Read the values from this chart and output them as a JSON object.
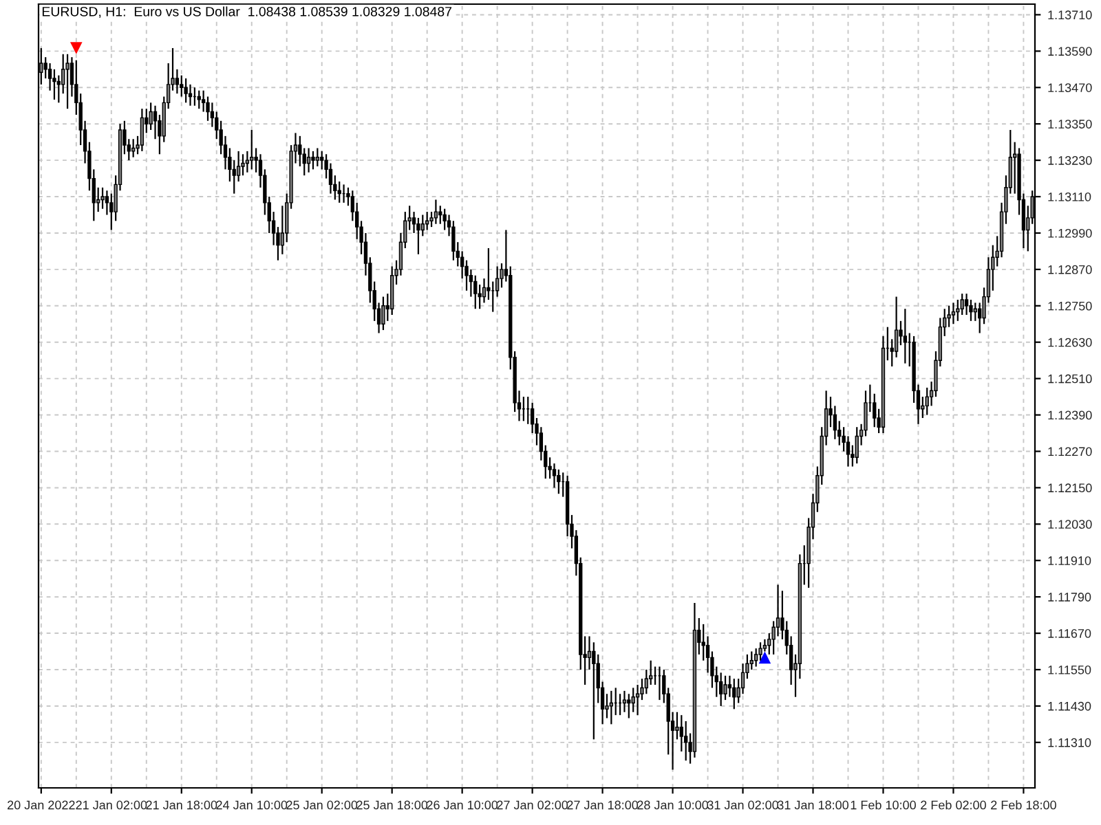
{
  "chart_data": {
    "type": "candlestick",
    "title": "EURUSD, H1:  Euro vs US Dollar  1.08438 1.08539 1.08329 1.08487",
    "categories": [
      "20 Jan 2022",
      null,
      null,
      null,
      null,
      null,
      null,
      null,
      null,
      null,
      null,
      null,
      null,
      null,
      null,
      null,
      "21 Jan 02:00",
      null,
      null,
      null,
      null,
      null,
      null,
      null,
      null,
      null,
      null,
      null,
      null,
      null,
      null,
      null,
      "21 Jan 18:00",
      null,
      null,
      null,
      null,
      null,
      null,
      null,
      null,
      null,
      null,
      null,
      null,
      null,
      null,
      null,
      "24 Jan 10:00",
      null,
      null,
      null,
      null,
      null,
      null,
      null,
      null,
      null,
      null,
      null,
      null,
      null,
      null,
      null,
      "25 Jan 02:00",
      null,
      null,
      null,
      null,
      null,
      null,
      null,
      null,
      null,
      null,
      null,
      null,
      null,
      null,
      null,
      "25 Jan 18:00",
      null,
      null,
      null,
      null,
      null,
      null,
      null,
      null,
      null,
      null,
      null,
      null,
      null,
      null,
      null,
      "26 Jan 10:00",
      null,
      null,
      null,
      null,
      null,
      null,
      null,
      null,
      null,
      null,
      null,
      null,
      null,
      null,
      null,
      "27 Jan 02:00",
      null,
      null,
      null,
      null,
      null,
      null,
      null,
      null,
      null,
      null,
      null,
      null,
      null,
      null,
      null,
      "27 Jan 18:00",
      null,
      null,
      null,
      null,
      null,
      null,
      null,
      null,
      null,
      null,
      null,
      null,
      null,
      null,
      null,
      "28 Jan 10:00",
      null,
      null,
      null,
      null,
      null,
      null,
      null,
      null,
      null,
      null,
      null,
      null,
      null,
      null,
      null,
      "31 Jan 02:00",
      null,
      null,
      null,
      null,
      null,
      null,
      null,
      null,
      null,
      null,
      null,
      null,
      null,
      null,
      null,
      "31 Jan 18:00",
      null,
      null,
      null,
      null,
      null,
      null,
      null,
      null,
      null,
      null,
      null,
      null,
      null,
      null,
      null,
      "1 Feb 10:00",
      null,
      null,
      null,
      null,
      null,
      null,
      null,
      null,
      null,
      null,
      null,
      null,
      null,
      null,
      null,
      "2 Feb 02:00",
      null,
      null,
      null,
      null,
      null,
      null,
      null,
      null,
      null,
      null,
      null,
      null,
      null,
      null,
      null,
      "2 Feb 18:00",
      null,
      null
    ],
    "ohlc": [
      [
        1.1352,
        1.136,
        1.1348,
        1.1355
      ],
      [
        1.1355,
        1.1357,
        1.135,
        1.1353
      ],
      [
        1.1353,
        1.1355,
        1.1346,
        1.135
      ],
      [
        1.135,
        1.1353,
        1.1343,
        1.1349
      ],
      [
        1.1349,
        1.1351,
        1.1342,
        1.1348
      ],
      [
        1.1348,
        1.1358,
        1.1345,
        1.1353
      ],
      [
        1.1353,
        1.1358,
        1.134,
        1.1355
      ],
      [
        1.1355,
        1.1357,
        1.1344,
        1.1348
      ],
      [
        1.1348,
        1.1356,
        1.1338,
        1.1342
      ],
      [
        1.1342,
        1.1345,
        1.1328,
        1.1333
      ],
      [
        1.1333,
        1.1336,
        1.1322,
        1.1326
      ],
      [
        1.1326,
        1.1329,
        1.1313,
        1.1317
      ],
      [
        1.1317,
        1.132,
        1.1303,
        1.1309
      ],
      [
        1.1309,
        1.1314,
        1.1306,
        1.131
      ],
      [
        1.131,
        1.1314,
        1.1307,
        1.1311
      ],
      [
        1.1311,
        1.1313,
        1.1305,
        1.1309
      ],
      [
        1.1309,
        1.1312,
        1.13,
        1.1306
      ],
      [
        1.1306,
        1.1318,
        1.1303,
        1.1315
      ],
      [
        1.1315,
        1.1335,
        1.1313,
        1.1333
      ],
      [
        1.1333,
        1.1336,
        1.1325,
        1.1328
      ],
      [
        1.1328,
        1.133,
        1.1323,
        1.1326
      ],
      [
        1.1326,
        1.133,
        1.1324,
        1.1327
      ],
      [
        1.1327,
        1.1331,
        1.1325,
        1.1328
      ],
      [
        1.1328,
        1.134,
        1.1326,
        1.1337
      ],
      [
        1.1337,
        1.134,
        1.1332,
        1.1335
      ],
      [
        1.1335,
        1.1342,
        1.1333,
        1.1339
      ],
      [
        1.1339,
        1.1341,
        1.133,
        1.1336
      ],
      [
        1.1336,
        1.1338,
        1.1325,
        1.1331
      ],
      [
        1.1331,
        1.1344,
        1.1329,
        1.1342
      ],
      [
        1.1342,
        1.1355,
        1.134,
        1.1348
      ],
      [
        1.1348,
        1.136,
        1.1346,
        1.135
      ],
      [
        1.135,
        1.1353,
        1.1345,
        1.1348
      ],
      [
        1.1348,
        1.1351,
        1.1344,
        1.1347
      ],
      [
        1.1347,
        1.135,
        1.1342,
        1.1345
      ],
      [
        1.1345,
        1.1348,
        1.1341,
        1.1344
      ],
      [
        1.1344,
        1.1347,
        1.1341,
        1.1344
      ],
      [
        1.1344,
        1.1346,
        1.134,
        1.1343
      ],
      [
        1.1343,
        1.1346,
        1.1339,
        1.1342
      ],
      [
        1.1342,
        1.1344,
        1.1336,
        1.1339
      ],
      [
        1.1339,
        1.1342,
        1.1334,
        1.1337
      ],
      [
        1.1337,
        1.1339,
        1.133,
        1.1333
      ],
      [
        1.1333,
        1.1336,
        1.1325,
        1.1328
      ],
      [
        1.1328,
        1.1331,
        1.132,
        1.1324
      ],
      [
        1.1324,
        1.1327,
        1.1316,
        1.132
      ],
      [
        1.132,
        1.1323,
        1.1312,
        1.1318
      ],
      [
        1.1318,
        1.1326,
        1.1316,
        1.1321
      ],
      [
        1.1321,
        1.1325,
        1.1318,
        1.1322
      ],
      [
        1.1322,
        1.1326,
        1.1319,
        1.1323
      ],
      [
        1.1323,
        1.1333,
        1.132,
        1.1324
      ],
      [
        1.1324,
        1.1327,
        1.1319,
        1.1323
      ],
      [
        1.1323,
        1.1325,
        1.1314,
        1.1318
      ],
      [
        1.1318,
        1.132,
        1.1305,
        1.1309
      ],
      [
        1.1309,
        1.1311,
        1.1299,
        1.1303
      ],
      [
        1.1303,
        1.1306,
        1.1295,
        1.1299
      ],
      [
        1.1299,
        1.1301,
        1.129,
        1.1295
      ],
      [
        1.1295,
        1.1308,
        1.1292,
        1.1299
      ],
      [
        1.1299,
        1.1312,
        1.1296,
        1.1309
      ],
      [
        1.1309,
        1.1328,
        1.1307,
        1.1326
      ],
      [
        1.1326,
        1.1332,
        1.1322,
        1.1328
      ],
      [
        1.1328,
        1.1331,
        1.1321,
        1.1325
      ],
      [
        1.1325,
        1.1327,
        1.1318,
        1.1322
      ],
      [
        1.1322,
        1.1327,
        1.1319,
        1.1324
      ],
      [
        1.1324,
        1.1326,
        1.132,
        1.1323
      ],
      [
        1.1323,
        1.1327,
        1.1321,
        1.1324
      ],
      [
        1.1324,
        1.1326,
        1.132,
        1.1323
      ],
      [
        1.1323,
        1.1325,
        1.1317,
        1.132
      ],
      [
        1.132,
        1.1322,
        1.1312,
        1.1315
      ],
      [
        1.1315,
        1.1318,
        1.131,
        1.1313
      ],
      [
        1.1313,
        1.1316,
        1.1309,
        1.1312
      ],
      [
        1.1312,
        1.1315,
        1.1309,
        1.1312
      ],
      [
        1.1312,
        1.1314,
        1.1308,
        1.1311
      ],
      [
        1.1311,
        1.1313,
        1.1303,
        1.1306
      ],
      [
        1.1306,
        1.1309,
        1.1297,
        1.1301
      ],
      [
        1.1301,
        1.1303,
        1.1292,
        1.1296
      ],
      [
        1.1296,
        1.1299,
        1.1285,
        1.1289
      ],
      [
        1.1289,
        1.1291,
        1.1276,
        1.128
      ],
      [
        1.128,
        1.1283,
        1.127,
        1.1274
      ],
      [
        1.1274,
        1.1276,
        1.1266,
        1.1269
      ],
      [
        1.1269,
        1.1278,
        1.1267,
        1.1275
      ],
      [
        1.1275,
        1.1279,
        1.127,
        1.1274
      ],
      [
        1.1274,
        1.1288,
        1.1272,
        1.1285
      ],
      [
        1.1285,
        1.129,
        1.1282,
        1.1287
      ],
      [
        1.1287,
        1.1299,
        1.1285,
        1.1296
      ],
      [
        1.1296,
        1.1306,
        1.1294,
        1.1303
      ],
      [
        1.1303,
        1.1308,
        1.13,
        1.1304
      ],
      [
        1.1304,
        1.1306,
        1.1299,
        1.1302
      ],
      [
        1.1302,
        1.1304,
        1.1292,
        1.13
      ],
      [
        1.13,
        1.1305,
        1.1298,
        1.1302
      ],
      [
        1.1302,
        1.1306,
        1.13,
        1.1303
      ],
      [
        1.1303,
        1.1306,
        1.1301,
        1.1304
      ],
      [
        1.1304,
        1.131,
        1.1302,
        1.1306
      ],
      [
        1.1306,
        1.1308,
        1.1302,
        1.1305
      ],
      [
        1.1305,
        1.1307,
        1.13,
        1.1303
      ],
      [
        1.1303,
        1.1305,
        1.1298,
        1.1301
      ],
      [
        1.1301,
        1.1303,
        1.129,
        1.1293
      ],
      [
        1.1293,
        1.1296,
        1.1288,
        1.1291
      ],
      [
        1.1291,
        1.1293,
        1.1284,
        1.1288
      ],
      [
        1.1288,
        1.129,
        1.128,
        1.1285
      ],
      [
        1.1285,
        1.1287,
        1.1278,
        1.1283
      ],
      [
        1.1283,
        1.1285,
        1.1274,
        1.1279
      ],
      [
        1.1279,
        1.1282,
        1.1274,
        1.1278
      ],
      [
        1.1278,
        1.1284,
        1.1276,
        1.1281
      ],
      [
        1.1281,
        1.1294,
        1.1277,
        1.128
      ],
      [
        1.128,
        1.1283,
        1.1273,
        1.128
      ],
      [
        1.128,
        1.1288,
        1.1278,
        1.1284
      ],
      [
        1.1284,
        1.1289,
        1.1281,
        1.1287
      ],
      [
        1.1287,
        1.13,
        1.1283,
        1.1285
      ],
      [
        1.1285,
        1.1288,
        1.1254,
        1.1258
      ],
      [
        1.1258,
        1.126,
        1.124,
        1.1243
      ],
      [
        1.1243,
        1.1247,
        1.1237,
        1.1241
      ],
      [
        1.1241,
        1.1245,
        1.1237,
        1.1241
      ],
      [
        1.1241,
        1.1245,
        1.1236,
        1.1241
      ],
      [
        1.1241,
        1.1243,
        1.1233,
        1.1236
      ],
      [
        1.1236,
        1.1238,
        1.1229,
        1.1233
      ],
      [
        1.1233,
        1.1235,
        1.1224,
        1.1227
      ],
      [
        1.1227,
        1.1229,
        1.1218,
        1.1222
      ],
      [
        1.1222,
        1.1225,
        1.1218,
        1.1221
      ],
      [
        1.1221,
        1.1223,
        1.1215,
        1.1219
      ],
      [
        1.1219,
        1.1221,
        1.1213,
        1.1217
      ],
      [
        1.1217,
        1.122,
        1.1212,
        1.1217
      ],
      [
        1.1217,
        1.1219,
        1.1199,
        1.1203
      ],
      [
        1.1203,
        1.1206,
        1.1195,
        1.1199
      ],
      [
        1.1199,
        1.1201,
        1.1186,
        1.119
      ],
      [
        1.119,
        1.1192,
        1.1155,
        1.116
      ],
      [
        1.116,
        1.1166,
        1.115,
        1.1159
      ],
      [
        1.1159,
        1.1166,
        1.1155,
        1.1161
      ],
      [
        1.1161,
        1.1164,
        1.1132,
        1.1157
      ],
      [
        1.1157,
        1.116,
        1.1144,
        1.1149
      ],
      [
        1.1149,
        1.1151,
        1.1137,
        1.1142
      ],
      [
        1.1142,
        1.1147,
        1.1139,
        1.1143
      ],
      [
        1.1143,
        1.1148,
        1.1137,
        1.1144
      ],
      [
        1.1144,
        1.1149,
        1.114,
        1.1144
      ],
      [
        1.1144,
        1.1147,
        1.114,
        1.1144
      ],
      [
        1.1144,
        1.1148,
        1.1141,
        1.1145
      ],
      [
        1.1145,
        1.1147,
        1.1139,
        1.1144
      ],
      [
        1.1144,
        1.1149,
        1.1141,
        1.1146
      ],
      [
        1.1146,
        1.115,
        1.114,
        1.1147
      ],
      [
        1.1147,
        1.1152,
        1.1145,
        1.1149
      ],
      [
        1.1149,
        1.1155,
        1.1147,
        1.1152
      ],
      [
        1.1152,
        1.1158,
        1.115,
        1.1153
      ],
      [
        1.1153,
        1.1156,
        1.115,
        1.1153
      ],
      [
        1.1153,
        1.1156,
        1.1145,
        1.1153
      ],
      [
        1.1153,
        1.1155,
        1.1144,
        1.1147
      ],
      [
        1.1147,
        1.1149,
        1.1127,
        1.1138
      ],
      [
        1.1138,
        1.1141,
        1.1122,
        1.1135
      ],
      [
        1.1135,
        1.1141,
        1.1132,
        1.1136
      ],
      [
        1.1136,
        1.114,
        1.1128,
        1.1133
      ],
      [
        1.1133,
        1.1138,
        1.1125,
        1.1131
      ],
      [
        1.1131,
        1.1134,
        1.1124,
        1.1128
      ],
      [
        1.1128,
        1.1177,
        1.1126,
        1.1168
      ],
      [
        1.1168,
        1.1172,
        1.116,
        1.1164
      ],
      [
        1.1164,
        1.117,
        1.1158,
        1.1163
      ],
      [
        1.1163,
        1.1166,
        1.1154,
        1.1159
      ],
      [
        1.1159,
        1.1161,
        1.1149,
        1.1153
      ],
      [
        1.1153,
        1.1156,
        1.1146,
        1.1151
      ],
      [
        1.1151,
        1.1154,
        1.1143,
        1.1147
      ],
      [
        1.1147,
        1.1153,
        1.1145,
        1.115
      ],
      [
        1.115,
        1.1153,
        1.1146,
        1.1149
      ],
      [
        1.1149,
        1.1152,
        1.1142,
        1.1146
      ],
      [
        1.1146,
        1.1152,
        1.1144,
        1.1149
      ],
      [
        1.1149,
        1.1157,
        1.1147,
        1.1154
      ],
      [
        1.1154,
        1.116,
        1.1152,
        1.1157
      ],
      [
        1.1157,
        1.1161,
        1.1155,
        1.1158
      ],
      [
        1.1158,
        1.1162,
        1.1156,
        1.116
      ],
      [
        1.116,
        1.1164,
        1.1158,
        1.1162
      ],
      [
        1.1162,
        1.1165,
        1.1161,
        1.1163
      ],
      [
        1.1163,
        1.1167,
        1.116,
        1.1165
      ],
      [
        1.1165,
        1.1171,
        1.116,
        1.1169
      ],
      [
        1.1169,
        1.1183,
        1.1166,
        1.1172
      ],
      [
        1.1172,
        1.1181,
        1.1165,
        1.1168
      ],
      [
        1.1168,
        1.1171,
        1.116,
        1.1163
      ],
      [
        1.1163,
        1.1166,
        1.115,
        1.1155
      ],
      [
        1.1155,
        1.116,
        1.1146,
        1.1157
      ],
      [
        1.1157,
        1.1193,
        1.1152,
        1.119
      ],
      [
        1.119,
        1.1196,
        1.1183,
        1.119
      ],
      [
        1.119,
        1.1205,
        1.1182,
        1.1202
      ],
      [
        1.1202,
        1.1213,
        1.1198,
        1.121
      ],
      [
        1.121,
        1.1222,
        1.1207,
        1.1219
      ],
      [
        1.1219,
        1.1235,
        1.1216,
        1.1232
      ],
      [
        1.1232,
        1.1247,
        1.1229,
        1.1241
      ],
      [
        1.1241,
        1.1245,
        1.1235,
        1.1239
      ],
      [
        1.1239,
        1.1242,
        1.1231,
        1.1234
      ],
      [
        1.1234,
        1.1237,
        1.1229,
        1.1232
      ],
      [
        1.1232,
        1.1235,
        1.1227,
        1.123
      ],
      [
        1.123,
        1.1232,
        1.1222,
        1.1226
      ],
      [
        1.1226,
        1.1229,
        1.1222,
        1.1225
      ],
      [
        1.1225,
        1.1235,
        1.1223,
        1.1232
      ],
      [
        1.1232,
        1.1236,
        1.1229,
        1.1234
      ],
      [
        1.1234,
        1.1247,
        1.1232,
        1.1243
      ],
      [
        1.1243,
        1.1249,
        1.124,
        1.1243
      ],
      [
        1.1243,
        1.1246,
        1.1235,
        1.1238
      ],
      [
        1.1238,
        1.1241,
        1.1233,
        1.1235
      ],
      [
        1.1235,
        1.1265,
        1.1233,
        1.1261
      ],
      [
        1.1261,
        1.1268,
        1.1257,
        1.1261
      ],
      [
        1.1261,
        1.1264,
        1.1255,
        1.126
      ],
      [
        1.126,
        1.1278,
        1.1258,
        1.1267
      ],
      [
        1.1267,
        1.127,
        1.1262,
        1.1265
      ],
      [
        1.1265,
        1.1274,
        1.1256,
        1.1263
      ],
      [
        1.1263,
        1.1266,
        1.1255,
        1.1263
      ],
      [
        1.1263,
        1.1265,
        1.1243,
        1.1247
      ],
      [
        1.1247,
        1.1249,
        1.1236,
        1.1241
      ],
      [
        1.1241,
        1.1245,
        1.1238,
        1.1242
      ],
      [
        1.1242,
        1.1248,
        1.1239,
        1.1245
      ],
      [
        1.1245,
        1.125,
        1.1242,
        1.1247
      ],
      [
        1.1247,
        1.126,
        1.1245,
        1.1257
      ],
      [
        1.1257,
        1.1271,
        1.1255,
        1.1268
      ],
      [
        1.1268,
        1.1274,
        1.1265,
        1.1271
      ],
      [
        1.1271,
        1.1275,
        1.1268,
        1.1272
      ],
      [
        1.1272,
        1.1276,
        1.1269,
        1.1273
      ],
      [
        1.1273,
        1.1277,
        1.127,
        1.1274
      ],
      [
        1.1274,
        1.1279,
        1.1272,
        1.1277
      ],
      [
        1.1277,
        1.1279,
        1.1272,
        1.1275
      ],
      [
        1.1275,
        1.1277,
        1.127,
        1.1273
      ],
      [
        1.1273,
        1.1276,
        1.127,
        1.1274
      ],
      [
        1.1274,
        1.1276,
        1.1266,
        1.1271
      ],
      [
        1.1271,
        1.1281,
        1.1269,
        1.1278
      ],
      [
        1.1278,
        1.1291,
        1.1276,
        1.1287
      ],
      [
        1.1287,
        1.1295,
        1.128,
        1.1291
      ],
      [
        1.1291,
        1.1298,
        1.1288,
        1.1293
      ],
      [
        1.1293,
        1.1309,
        1.1291,
        1.1306
      ],
      [
        1.1306,
        1.1318,
        1.1302,
        1.1314
      ],
      [
        1.1314,
        1.1333,
        1.1312,
        1.1324
      ],
      [
        1.1324,
        1.1329,
        1.1312,
        1.1325
      ],
      [
        1.1325,
        1.1327,
        1.1305,
        1.131
      ],
      [
        1.131,
        1.1312,
        1.1294,
        1.13
      ],
      [
        1.13,
        1.1308,
        1.1293,
        1.1304
      ],
      [
        1.1304,
        1.1313,
        1.1302,
        1.1311
      ]
    ],
    "series": [
      {
        "type": "scatter",
        "marker": "triangle",
        "color": "#ff0000",
        "values": [
          null,
          null,
          null,
          null,
          null,
          null,
          null,
          null,
          1.136,
          null,
          null,
          null,
          null,
          null,
          null,
          null,
          null,
          null,
          null,
          null,
          null,
          null,
          null,
          null,
          null,
          null,
          null,
          null,
          null,
          null,
          null,
          null,
          null,
          null,
          null,
          null,
          null,
          null,
          null,
          null,
          null,
          null,
          null,
          null,
          null,
          null,
          null,
          null,
          null,
          null,
          null,
          null,
          null,
          null,
          null,
          null,
          null,
          null,
          null,
          null,
          null,
          null,
          null,
          null,
          null,
          null,
          null,
          null,
          null,
          null,
          null,
          null,
          null,
          null,
          null,
          null,
          null,
          null,
          null,
          null,
          null,
          null,
          null,
          null,
          null,
          null,
          null,
          null,
          null,
          null,
          null,
          null,
          null,
          null,
          null,
          null,
          null,
          null,
          null,
          null,
          null,
          null,
          null,
          null,
          null,
          null,
          null,
          null,
          null,
          null,
          null,
          null,
          null,
          null,
          null,
          null,
          null,
          null,
          null,
          null,
          null,
          null,
          null,
          null,
          null,
          null,
          null,
          null,
          null,
          null,
          null,
          null,
          null,
          null,
          null,
          null,
          null,
          null,
          null,
          null,
          null,
          null,
          null,
          null,
          null,
          null,
          null,
          null,
          null,
          null,
          null,
          null,
          null,
          null,
          null,
          null,
          null,
          null,
          null,
          null,
          null,
          null,
          null,
          null,
          null,
          null,
          null,
          null,
          null,
          null,
          null,
          null,
          null,
          null,
          null,
          null,
          null,
          null,
          null,
          null,
          null,
          null,
          null,
          null,
          null,
          null,
          null,
          null,
          null,
          null,
          null,
          null,
          null,
          null,
          null,
          null,
          null,
          null,
          null,
          null,
          null,
          null,
          null,
          null,
          null,
          null,
          null,
          null,
          null,
          null,
          null,
          null,
          null,
          null,
          null,
          null,
          null,
          null,
          null,
          null,
          null,
          null,
          null,
          null,
          null,
          null,
          null
        ]
      },
      {
        "type": "scatter",
        "marker": "triangle",
        "color": "#0000ff",
        "values": [
          null,
          null,
          null,
          null,
          null,
          null,
          null,
          null,
          null,
          null,
          null,
          null,
          null,
          null,
          null,
          null,
          null,
          null,
          null,
          null,
          null,
          null,
          null,
          null,
          null,
          null,
          null,
          null,
          null,
          null,
          null,
          null,
          null,
          null,
          null,
          null,
          null,
          null,
          null,
          null,
          null,
          null,
          null,
          null,
          null,
          null,
          null,
          null,
          null,
          null,
          null,
          null,
          null,
          null,
          null,
          null,
          null,
          null,
          null,
          null,
          null,
          null,
          null,
          null,
          null,
          null,
          null,
          null,
          null,
          null,
          null,
          null,
          null,
          null,
          null,
          null,
          null,
          null,
          null,
          null,
          null,
          null,
          null,
          null,
          null,
          null,
          null,
          null,
          null,
          null,
          null,
          null,
          null,
          null,
          null,
          null,
          null,
          null,
          null,
          null,
          null,
          null,
          null,
          null,
          null,
          null,
          null,
          null,
          null,
          null,
          null,
          null,
          null,
          null,
          null,
          null,
          null,
          null,
          null,
          null,
          null,
          null,
          null,
          null,
          null,
          null,
          null,
          null,
          null,
          null,
          null,
          null,
          null,
          null,
          null,
          null,
          null,
          null,
          null,
          null,
          null,
          null,
          null,
          null,
          null,
          null,
          null,
          null,
          null,
          null,
          null,
          null,
          null,
          null,
          null,
          null,
          null,
          null,
          null,
          null,
          null,
          null,
          null,
          null,
          null,
          1.1159,
          null,
          null,
          null,
          null,
          null,
          null,
          null,
          null,
          null,
          null,
          null,
          null,
          null,
          null,
          null,
          null,
          null,
          null,
          null,
          null,
          null,
          null,
          null,
          null,
          null,
          null,
          null,
          null,
          null,
          null,
          null,
          null,
          null,
          null,
          null,
          null,
          null,
          null,
          null,
          null,
          null,
          null,
          null,
          null,
          null,
          null,
          null,
          null,
          null,
          null,
          null,
          null,
          null,
          null,
          null,
          null,
          null,
          null,
          null,
          null,
          null
        ]
      }
    ],
    "ylim": [
      1.1116,
      1.13745
    ],
    "yticks": [
      {
        "value": 1.1131,
        "label": "1.11310"
      },
      {
        "value": 1.1143,
        "label": "1.11430"
      },
      {
        "value": 1.1155,
        "label": "1.11550"
      },
      {
        "value": 1.1167,
        "label": "1.11670"
      },
      {
        "value": 1.1179,
        "label": "1.11790"
      },
      {
        "value": 1.1191,
        "label": "1.11910"
      },
      {
        "value": 1.1203,
        "label": "1.12030"
      },
      {
        "value": 1.1215,
        "label": "1.12150"
      },
      {
        "value": 1.1227,
        "label": "1.12270"
      },
      {
        "value": 1.1239,
        "label": "1.12390"
      },
      {
        "value": 1.1251,
        "label": "1.12510"
      },
      {
        "value": 1.1263,
        "label": "1.12630"
      },
      {
        "value": 1.1275,
        "label": "1.12750"
      },
      {
        "value": 1.1287,
        "label": "1.12870"
      },
      {
        "value": 1.1299,
        "label": "1.12990"
      },
      {
        "value": 1.1311,
        "label": "1.13110"
      },
      {
        "value": 1.1323,
        "label": "1.13230"
      },
      {
        "value": 1.1335,
        "label": "1.13350"
      },
      {
        "value": 1.1347,
        "label": "1.13470"
      },
      {
        "value": 1.1359,
        "label": "1.13590"
      },
      {
        "value": 1.1371,
        "label": "1.13710"
      }
    ],
    "grid": true,
    "legend": false
  }
}
